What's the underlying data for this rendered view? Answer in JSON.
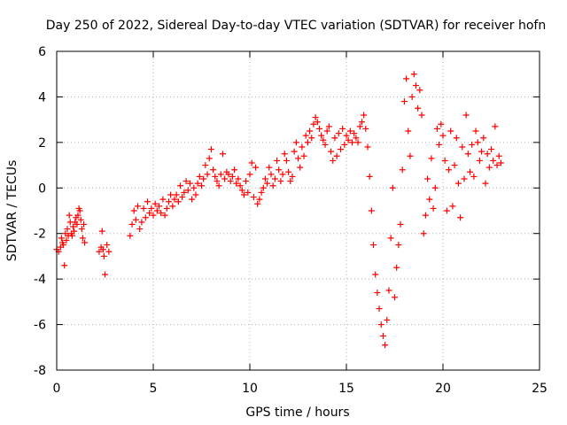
{
  "chart_data": {
    "type": "scatter",
    "title": "Day 250 of 2022, Sidereal Day-to-day VTEC variation (SDTVAR) for receiver hofn",
    "xlabel": "GPS time / hours",
    "ylabel": "SDTVAR / TECUs",
    "xlim": [
      0,
      25
    ],
    "ylim": [
      -8,
      6
    ],
    "xticks": [
      "0",
      "5",
      "10",
      "15",
      "20",
      "25"
    ],
    "yticks": [
      "-8",
      "-6",
      "-4",
      "-2",
      "0",
      "2",
      "4",
      "6"
    ],
    "grid": true,
    "marker": "+",
    "marker_color": "#ff0000",
    "series": [
      {
        "name": "SDTVAR",
        "points": [
          [
            0.0,
            -2.7
          ],
          [
            0.1,
            -2.8
          ],
          [
            0.2,
            -2.6
          ],
          [
            0.25,
            -2.2
          ],
          [
            0.3,
            -2.4
          ],
          [
            0.35,
            -2.5
          ],
          [
            0.4,
            -3.4
          ],
          [
            0.45,
            -2.0
          ],
          [
            0.5,
            -2.3
          ],
          [
            0.55,
            -1.8
          ],
          [
            0.6,
            -2.1
          ],
          [
            0.65,
            -1.2
          ],
          [
            0.7,
            -1.5
          ],
          [
            0.75,
            -2.0
          ],
          [
            0.8,
            -2.1
          ],
          [
            0.85,
            -1.7
          ],
          [
            0.9,
            -1.9
          ],
          [
            0.95,
            -1.5
          ],
          [
            1.0,
            -1.3
          ],
          [
            1.05,
            -1.6
          ],
          [
            1.1,
            -1.2
          ],
          [
            1.15,
            -0.9
          ],
          [
            1.2,
            -1.0
          ],
          [
            1.25,
            -1.4
          ],
          [
            1.3,
            -1.8
          ],
          [
            1.35,
            -2.2
          ],
          [
            1.4,
            -1.6
          ],
          [
            1.45,
            -2.4
          ],
          [
            2.2,
            -2.8
          ],
          [
            2.3,
            -2.6
          ],
          [
            2.35,
            -1.9
          ],
          [
            2.4,
            -2.7
          ],
          [
            2.45,
            -3.0
          ],
          [
            2.5,
            -3.8
          ],
          [
            2.6,
            -2.5
          ],
          [
            2.7,
            -2.8
          ],
          [
            3.8,
            -2.1
          ],
          [
            3.9,
            -1.6
          ],
          [
            4.0,
            -1.0
          ],
          [
            4.1,
            -1.4
          ],
          [
            4.2,
            -0.8
          ],
          [
            4.3,
            -1.8
          ],
          [
            4.4,
            -1.5
          ],
          [
            4.5,
            -0.9
          ],
          [
            4.6,
            -1.3
          ],
          [
            4.7,
            -0.6
          ],
          [
            4.8,
            -1.1
          ],
          [
            4.9,
            -0.9
          ],
          [
            5.0,
            -1.2
          ],
          [
            5.1,
            -0.7
          ],
          [
            5.2,
            -1.0
          ],
          [
            5.3,
            -0.8
          ],
          [
            5.4,
            -1.1
          ],
          [
            5.5,
            -0.5
          ],
          [
            5.6,
            -1.2
          ],
          [
            5.7,
            -0.9
          ],
          [
            5.8,
            -0.6
          ],
          [
            5.9,
            -0.3
          ],
          [
            6.0,
            -0.8
          ],
          [
            6.1,
            -0.5
          ],
          [
            6.2,
            -0.3
          ],
          [
            6.3,
            -0.6
          ],
          [
            6.4,
            0.1
          ],
          [
            6.5,
            -0.4
          ],
          [
            6.6,
            -0.2
          ],
          [
            6.7,
            0.3
          ],
          [
            6.8,
            -0.1
          ],
          [
            6.9,
            0.2
          ],
          [
            7.0,
            -0.5
          ],
          [
            7.1,
            0.0
          ],
          [
            7.2,
            -0.3
          ],
          [
            7.3,
            0.2
          ],
          [
            7.4,
            0.5
          ],
          [
            7.5,
            0.1
          ],
          [
            7.6,
            0.4
          ],
          [
            7.7,
            1.0
          ],
          [
            7.8,
            0.6
          ],
          [
            7.9,
            1.3
          ],
          [
            8.0,
            1.7
          ],
          [
            8.1,
            0.8
          ],
          [
            8.2,
            0.5
          ],
          [
            8.3,
            0.3
          ],
          [
            8.4,
            0.1
          ],
          [
            8.5,
            0.6
          ],
          [
            8.6,
            1.5
          ],
          [
            8.7,
            0.4
          ],
          [
            8.8,
            0.7
          ],
          [
            8.9,
            0.6
          ],
          [
            9.0,
            0.3
          ],
          [
            9.1,
            0.5
          ],
          [
            9.2,
            0.8
          ],
          [
            9.3,
            0.2
          ],
          [
            9.4,
            0.4
          ],
          [
            9.5,
            0.1
          ],
          [
            9.6,
            -0.1
          ],
          [
            9.7,
            -0.3
          ],
          [
            9.8,
            0.3
          ],
          [
            9.9,
            -0.2
          ],
          [
            10.0,
            0.6
          ],
          [
            10.1,
            1.1
          ],
          [
            10.2,
            -0.4
          ],
          [
            10.3,
            0.9
          ],
          [
            10.4,
            -0.7
          ],
          [
            10.5,
            -0.5
          ],
          [
            10.6,
            -0.2
          ],
          [
            10.7,
            0.0
          ],
          [
            10.8,
            0.4
          ],
          [
            10.9,
            0.2
          ],
          [
            11.0,
            0.9
          ],
          [
            11.1,
            0.6
          ],
          [
            11.2,
            0.1
          ],
          [
            11.3,
            0.4
          ],
          [
            11.4,
            1.2
          ],
          [
            11.5,
            0.8
          ],
          [
            11.6,
            0.3
          ],
          [
            11.7,
            0.6
          ],
          [
            11.8,
            1.5
          ],
          [
            11.9,
            1.2
          ],
          [
            12.0,
            0.7
          ],
          [
            12.1,
            0.3
          ],
          [
            12.2,
            0.5
          ],
          [
            12.3,
            1.6
          ],
          [
            12.4,
            2.0
          ],
          [
            12.5,
            1.3
          ],
          [
            12.6,
            0.9
          ],
          [
            12.7,
            1.8
          ],
          [
            12.8,
            1.4
          ],
          [
            12.9,
            2.3
          ],
          [
            13.0,
            2.0
          ],
          [
            13.1,
            2.5
          ],
          [
            13.2,
            2.2
          ],
          [
            13.3,
            2.8
          ],
          [
            13.4,
            3.1
          ],
          [
            13.5,
            2.9
          ],
          [
            13.6,
            2.6
          ],
          [
            13.7,
            2.3
          ],
          [
            13.8,
            2.1
          ],
          [
            13.9,
            1.9
          ],
          [
            14.0,
            2.5
          ],
          [
            14.1,
            2.7
          ],
          [
            14.2,
            1.6
          ],
          [
            14.3,
            1.2
          ],
          [
            14.4,
            2.2
          ],
          [
            14.5,
            1.4
          ],
          [
            14.6,
            2.4
          ],
          [
            14.7,
            1.7
          ],
          [
            14.8,
            2.6
          ],
          [
            14.9,
            1.9
          ],
          [
            15.0,
            2.3
          ],
          [
            15.1,
            2.1
          ],
          [
            15.2,
            2.5
          ],
          [
            15.3,
            2.0
          ],
          [
            15.4,
            2.4
          ],
          [
            15.5,
            2.2
          ],
          [
            15.6,
            2.0
          ],
          [
            15.7,
            2.7
          ],
          [
            15.8,
            2.9
          ],
          [
            15.9,
            3.2
          ],
          [
            16.0,
            2.6
          ],
          [
            16.1,
            1.8
          ],
          [
            16.2,
            0.5
          ],
          [
            16.3,
            -1.0
          ],
          [
            16.4,
            -2.5
          ],
          [
            16.5,
            -3.8
          ],
          [
            16.6,
            -4.6
          ],
          [
            16.7,
            -5.3
          ],
          [
            16.8,
            -6.0
          ],
          [
            16.9,
            -6.5
          ],
          [
            17.0,
            -6.9
          ],
          [
            17.1,
            -5.8
          ],
          [
            17.2,
            -4.5
          ],
          [
            17.3,
            -2.2
          ],
          [
            17.4,
            0.0
          ],
          [
            17.5,
            -4.8
          ],
          [
            17.6,
            -3.5
          ],
          [
            17.7,
            -2.5
          ],
          [
            17.8,
            -1.6
          ],
          [
            17.9,
            0.8
          ],
          [
            18.0,
            3.8
          ],
          [
            18.1,
            4.8
          ],
          [
            18.2,
            2.5
          ],
          [
            18.3,
            1.4
          ],
          [
            18.4,
            4.0
          ],
          [
            18.5,
            5.0
          ],
          [
            18.6,
            4.5
          ],
          [
            18.7,
            3.5
          ],
          [
            18.8,
            4.3
          ],
          [
            18.9,
            3.2
          ],
          [
            19.0,
            -2.0
          ],
          [
            19.1,
            -1.2
          ],
          [
            19.2,
            0.4
          ],
          [
            19.3,
            -0.5
          ],
          [
            19.4,
            1.3
          ],
          [
            19.5,
            -0.9
          ],
          [
            19.6,
            0.0
          ],
          [
            19.7,
            2.6
          ],
          [
            19.8,
            1.9
          ],
          [
            19.9,
            2.8
          ],
          [
            20.0,
            2.3
          ],
          [
            20.1,
            1.2
          ],
          [
            20.2,
            -1.0
          ],
          [
            20.3,
            0.8
          ],
          [
            20.4,
            2.5
          ],
          [
            20.5,
            -0.8
          ],
          [
            20.6,
            1.0
          ],
          [
            20.7,
            2.2
          ],
          [
            20.8,
            0.2
          ],
          [
            20.9,
            -1.3
          ],
          [
            21.0,
            1.8
          ],
          [
            21.1,
            0.4
          ],
          [
            21.2,
            3.2
          ],
          [
            21.3,
            1.5
          ],
          [
            21.4,
            0.7
          ],
          [
            21.5,
            1.9
          ],
          [
            21.6,
            0.5
          ],
          [
            21.7,
            2.5
          ],
          [
            21.8,
            2.0
          ],
          [
            21.9,
            1.2
          ],
          [
            22.0,
            1.6
          ],
          [
            22.1,
            2.2
          ],
          [
            22.2,
            0.2
          ],
          [
            22.3,
            1.5
          ],
          [
            22.4,
            0.9
          ],
          [
            22.5,
            1.7
          ],
          [
            22.6,
            1.2
          ],
          [
            22.7,
            2.7
          ],
          [
            22.8,
            1.0
          ],
          [
            22.9,
            1.4
          ],
          [
            23.0,
            1.1
          ]
        ]
      }
    ]
  }
}
